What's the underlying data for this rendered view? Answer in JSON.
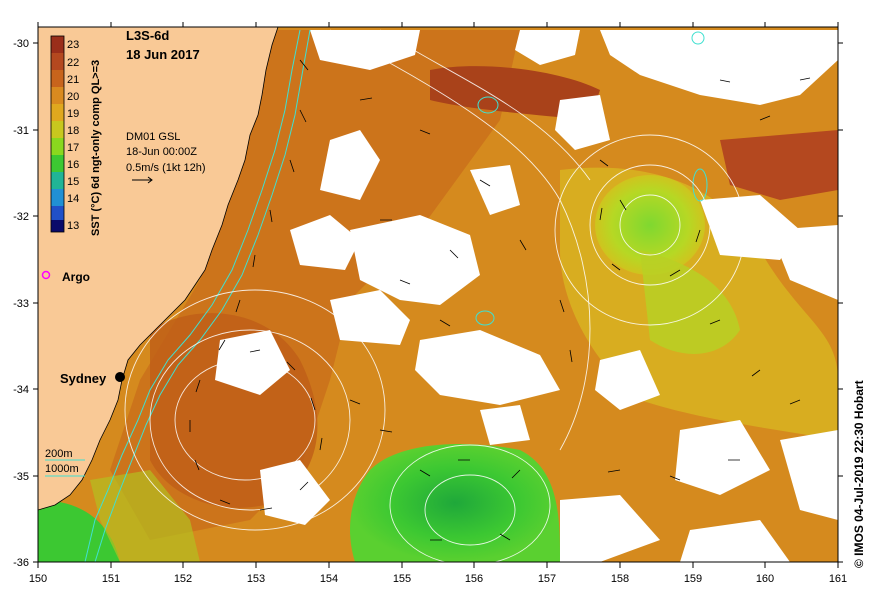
{
  "product": {
    "code": "L3S-6d",
    "date": "18 Jun 2017"
  },
  "colorbar": {
    "title": "SST (°C) 6d ngt-only comp QL>=3",
    "labels": [
      "23",
      "22",
      "21",
      "20",
      "19",
      "18",
      "17",
      "16",
      "15",
      "14",
      "13"
    ],
    "colors": [
      "#9a2e1a",
      "#b4481f",
      "#c8641c",
      "#d98a1f",
      "#e0a81e",
      "#c8c81e",
      "#8ad81e",
      "#3cc832",
      "#20b496",
      "#2090d4",
      "#2050c8",
      "#1a2a9a",
      "#0a0a6a"
    ]
  },
  "model": {
    "name": "DM01 GSL",
    "time": "18-Jun 00:00Z",
    "scale": "0.5m/s (1kt 12h)"
  },
  "legend": {
    "argo": "Argo",
    "city": "Sydney",
    "iso200": "200m",
    "iso1000": "1000m"
  },
  "axes": {
    "lon_ticks": [
      "150",
      "151",
      "152",
      "153",
      "154",
      "155",
      "156",
      "157",
      "158",
      "159",
      "160",
      "161"
    ],
    "lat_ticks": [
      "-30",
      "-31",
      "-32",
      "-33",
      "-34",
      "-35",
      "-36"
    ]
  },
  "credit": "© IMOS 04-Jul-2019 22:30 Hobart",
  "colors": {
    "land": "#f9c996",
    "warm": "#d98a1f",
    "cool": "#3cc832",
    "isobath": "#40e0d0"
  }
}
